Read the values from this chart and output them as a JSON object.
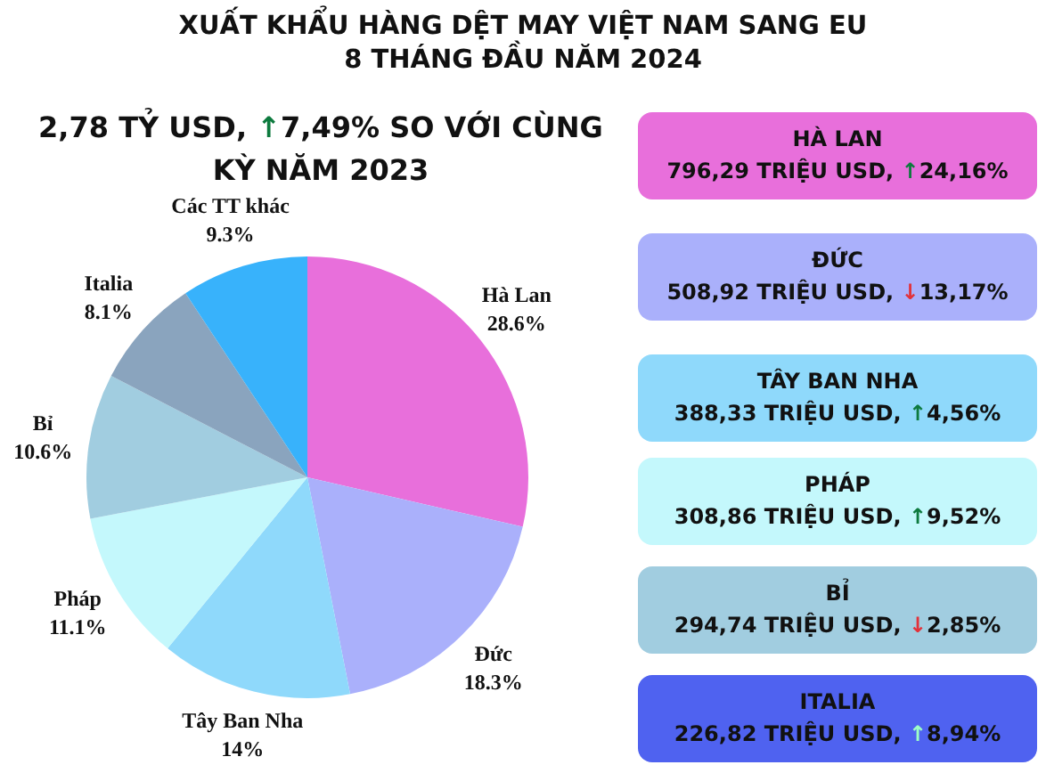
{
  "chart_data": {
    "type": "pie",
    "title": "XUẤT KHẨU HÀNG DỆT MAY VIỆT NAM SANG EU\n8 THÁNG ĐẦU NĂM 2024",
    "subtitle": "2,78 TỶ USD, ↑7,49% SO VỚI CÙNG KỲ NĂM 2023",
    "categories": [
      "Hà Lan",
      "Đức",
      "Tây Ban Nha",
      "Pháp",
      "Bỉ",
      "Italia",
      "Các TT khác"
    ],
    "values": [
      28.6,
      18.3,
      14,
      11.1,
      10.6,
      8.1,
      9.3
    ],
    "value_labels": [
      "28.6%",
      "18.3%",
      "14%",
      "11.1%",
      "10.6%",
      "8.1%",
      "9.3%"
    ],
    "colors": [
      "#e86fdb",
      "#aab0fb",
      "#8fd9fb",
      "#c4f8fc",
      "#a1cde0",
      "#8aa4be",
      "#38b2fb"
    ],
    "legend": false,
    "annotations": [
      "HÀ LAN",
      "796,29 TRIỆU USD, ↑24,16%",
      "ĐỨC",
      "508,92 TRIỆU USD, ↓13,17%",
      "TÂY BAN NHA",
      "388,33 TRIỆU USD, ↑4,56%",
      "PHÁP",
      "308,86 TRIỆU USD, ↑9,52%",
      "BỈ",
      "294,74 TRIỆU USD, ↓2,85%",
      "ITALIA",
      "226,82 TRIỆU USD, ↑8,94%"
    ]
  }
}
